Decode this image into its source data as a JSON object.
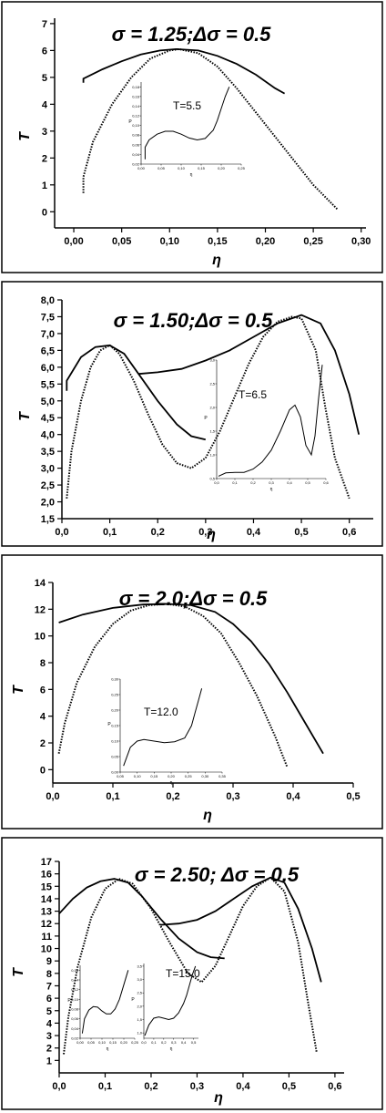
{
  "chart_data": [
    {
      "type": "line",
      "title": "σ = 1.25;Δσ = 0.5",
      "xlabel": "η",
      "ylabel": "T",
      "xlim": [
        -0.02,
        0.305
      ],
      "ylim": [
        -0.6,
        7.2
      ],
      "x_ticks": [
        "0,00",
        "0,05",
        "0,10",
        "0,15",
        "0,20",
        "0,25",
        "0,30"
      ],
      "x_tick_values": [
        0,
        0.05,
        0.1,
        0.15,
        0.2,
        0.25,
        0.3
      ],
      "y_ticks": [
        "0",
        "1",
        "2",
        "3",
        "4",
        "5",
        "6",
        "7"
      ],
      "y_tick_values": [
        0,
        1,
        2,
        3,
        4,
        5,
        6,
        7
      ],
      "series": [
        {
          "style": "solid",
          "x": [
            0.01,
            0.01,
            0.03,
            0.05,
            0.07,
            0.09,
            0.107,
            0.13,
            0.15,
            0.17,
            0.19,
            0.21,
            0.22
          ],
          "y": [
            4.8,
            4.95,
            5.3,
            5.6,
            5.85,
            6.0,
            6.05,
            6.0,
            5.8,
            5.5,
            5.1,
            4.6,
            4.4
          ]
        },
        {
          "style": "dotted",
          "x": [
            0.01,
            0.01,
            0.02,
            0.04,
            0.06,
            0.08,
            0.1,
            0.11,
            0.13,
            0.15,
            0.17,
            0.19,
            0.21,
            0.23,
            0.25,
            0.275
          ],
          "y": [
            0.7,
            1.3,
            2.6,
            4.0,
            5.0,
            5.7,
            6.0,
            6.05,
            5.9,
            5.4,
            4.6,
            3.7,
            2.8,
            1.9,
            1.0,
            0.1
          ]
        }
      ],
      "inset": {
        "label": "T=5.5",
        "xlabel": "η",
        "ylabel": "P",
        "x_ticks": [
          "0,00",
          "0,05",
          "0,10",
          "0,15",
          "0,20",
          "0,25"
        ],
        "x_tick_values": [
          0,
          0.05,
          0.1,
          0.15,
          0.2,
          0.25
        ],
        "y_ticks": [
          "0,02",
          "0,04",
          "0,06",
          "0,08",
          "0,10",
          "0,12",
          "0,14",
          "0,16",
          "0,18"
        ],
        "y_tick_values": [
          0.02,
          0.04,
          0.06,
          0.08,
          0.1,
          0.12,
          0.14,
          0.16,
          0.18
        ],
        "xlim": [
          0,
          0.25
        ],
        "ylim": [
          0.02,
          0.19
        ],
        "x": [
          0.01,
          0.01,
          0.02,
          0.04,
          0.06,
          0.08,
          0.1,
          0.12,
          0.14,
          0.16,
          0.18,
          0.19,
          0.2,
          0.21,
          0.22
        ],
        "y": [
          0.03,
          0.055,
          0.07,
          0.082,
          0.088,
          0.088,
          0.082,
          0.074,
          0.07,
          0.073,
          0.09,
          0.11,
          0.135,
          0.16,
          0.18
        ]
      }
    },
    {
      "type": "line",
      "title": "σ = 1.50;Δσ = 0.5",
      "xlabel": "η",
      "ylabel": "T",
      "xlim": [
        0,
        0.65
      ],
      "ylim": [
        1.5,
        8.0
      ],
      "x_ticks": [
        "0,0",
        "0,1",
        "0,2",
        "0,3",
        "0,4",
        "0,5",
        "0,6"
      ],
      "x_tick_values": [
        0,
        0.1,
        0.2,
        0.3,
        0.4,
        0.5,
        0.6
      ],
      "y_ticks": [
        "1,5",
        "2,0",
        "2,5",
        "3,0",
        "3,5",
        "4,0",
        "4,5",
        "5,0",
        "5,5",
        "6,0",
        "6,5",
        "7,0",
        "7,5",
        "8,0"
      ],
      "y_tick_values": [
        1.5,
        2.0,
        2.5,
        3.0,
        3.5,
        4.0,
        4.5,
        5.0,
        5.5,
        6.0,
        6.5,
        7.0,
        7.5,
        8.0
      ],
      "series": [
        {
          "style": "solid",
          "x": [
            0.01,
            0.01,
            0.04,
            0.07,
            0.1,
            0.13,
            0.16,
            0.2,
            0.24,
            0.27,
            0.3
          ],
          "y": [
            5.3,
            5.6,
            6.3,
            6.6,
            6.65,
            6.4,
            5.8,
            5.0,
            4.3,
            3.95,
            3.85
          ]
        },
        {
          "style": "solid",
          "x": [
            0.16,
            0.2,
            0.25,
            0.3,
            0.35,
            0.4,
            0.45,
            0.5,
            0.54,
            0.57,
            0.6,
            0.62
          ],
          "y": [
            5.8,
            5.85,
            5.95,
            6.2,
            6.5,
            6.9,
            7.3,
            7.55,
            7.3,
            6.5,
            5.2,
            4.0
          ]
        },
        {
          "style": "dotted",
          "x": [
            0.01,
            0.02,
            0.04,
            0.06,
            0.08,
            0.1,
            0.12,
            0.15,
            0.18,
            0.21,
            0.24,
            0.27,
            0.3,
            0.33,
            0.36,
            0.39,
            0.42,
            0.45,
            0.48,
            0.5,
            0.53,
            0.55,
            0.57,
            0.6
          ],
          "y": [
            2.1,
            3.5,
            5.0,
            6.0,
            6.5,
            6.65,
            6.4,
            5.6,
            4.6,
            3.7,
            3.15,
            3.0,
            3.3,
            4.1,
            5.1,
            6.1,
            6.9,
            7.35,
            7.5,
            7.45,
            6.5,
            4.8,
            3.3,
            2.1
          ]
        }
      ],
      "inset": {
        "label": "T=6.5",
        "xlabel": "η",
        "ylabel": "P",
        "x_ticks": [
          "0,0",
          "0,1",
          "0,2",
          "0,3",
          "0,4",
          "0,5",
          "0,6"
        ],
        "x_tick_values": [
          0,
          0.1,
          0.2,
          0.3,
          0.4,
          0.5,
          0.6
        ],
        "y_ticks": [
          "0,5",
          "1,0",
          "1,5",
          "2,0",
          "2,5",
          "3,0"
        ],
        "y_tick_values": [
          0.5,
          1.0,
          1.5,
          2.0,
          2.5,
          3.0
        ],
        "xlim": [
          0,
          0.6
        ],
        "ylim": [
          0.5,
          3.0
        ],
        "x": [
          0.01,
          0.05,
          0.1,
          0.15,
          0.2,
          0.25,
          0.3,
          0.35,
          0.4,
          0.43,
          0.46,
          0.49,
          0.52,
          0.54,
          0.56,
          0.58
        ],
        "y": [
          0.55,
          0.62,
          0.63,
          0.63,
          0.7,
          0.85,
          1.1,
          1.5,
          1.95,
          2.05,
          1.8,
          1.2,
          1.0,
          1.4,
          2.2,
          2.9
        ]
      }
    },
    {
      "type": "line",
      "title": "σ = 2.0;Δσ = 0.5",
      "xlabel": "η",
      "ylabel": "T",
      "xlim": [
        0,
        0.5
      ],
      "ylim": [
        -1.0,
        14.0
      ],
      "x_ticks": [
        "0,0",
        "0,1",
        "0,2",
        "0,3",
        "0,4",
        "0,5"
      ],
      "x_tick_values": [
        0,
        0.1,
        0.2,
        0.3,
        0.4,
        0.5
      ],
      "y_ticks": [
        "0",
        "2",
        "4",
        "6",
        "8",
        "10",
        "12",
        "14"
      ],
      "y_tick_values": [
        0,
        2,
        4,
        6,
        8,
        10,
        12,
        14
      ],
      "series": [
        {
          "style": "solid",
          "x": [
            0.01,
            0.05,
            0.1,
            0.15,
            0.19,
            0.23,
            0.27,
            0.3,
            0.33,
            0.36,
            0.39,
            0.42,
            0.45
          ],
          "y": [
            11.0,
            11.6,
            12.1,
            12.35,
            12.4,
            12.3,
            11.8,
            10.9,
            9.6,
            7.9,
            5.8,
            3.5,
            1.2
          ]
        },
        {
          "style": "dotted",
          "x": [
            0.01,
            0.02,
            0.04,
            0.07,
            0.1,
            0.13,
            0.16,
            0.19,
            0.22,
            0.25,
            0.28,
            0.31,
            0.34,
            0.37,
            0.39
          ],
          "y": [
            1.2,
            3.5,
            6.5,
            9.2,
            10.9,
            11.9,
            12.3,
            12.4,
            12.2,
            11.5,
            10.2,
            8.0,
            5.5,
            2.5,
            0.2
          ]
        }
      ],
      "inset": {
        "label": "T=12.0",
        "xlabel": "η",
        "ylabel": "P",
        "x_ticks": [
          "0,05",
          "0,10",
          "0,15",
          "0,20",
          "0,25",
          "0,30",
          "0,35"
        ],
        "x_tick_values": [
          0.05,
          0.1,
          0.15,
          0.2,
          0.25,
          0.3,
          0.35
        ],
        "y_ticks": [
          "0,00",
          "0,05",
          "0,10",
          "0,15",
          "0,20",
          "0,25",
          "0,30"
        ],
        "y_tick_values": [
          0,
          0.05,
          0.1,
          0.15,
          0.2,
          0.25,
          0.3
        ],
        "xlim": [
          0.05,
          0.35
        ],
        "ylim": [
          0,
          0.3
        ],
        "x": [
          0.06,
          0.08,
          0.1,
          0.12,
          0.15,
          0.18,
          0.21,
          0.24,
          0.26,
          0.27,
          0.28,
          0.29
        ],
        "y": [
          0.02,
          0.08,
          0.1,
          0.105,
          0.1,
          0.095,
          0.098,
          0.11,
          0.15,
          0.19,
          0.23,
          0.27
        ]
      }
    },
    {
      "type": "line",
      "title": "σ = 2.50; Δσ = 0.5",
      "xlabel": "η",
      "ylabel": "T",
      "xlim": [
        0,
        0.62
      ],
      "ylim": [
        0,
        17
      ],
      "x_ticks": [
        "0,0",
        "0,1",
        "0,2",
        "0,3",
        "0,4",
        "0,5",
        "0,6"
      ],
      "x_tick_values": [
        0,
        0.1,
        0.2,
        0.3,
        0.4,
        0.5,
        0.6
      ],
      "y_ticks": [
        "1",
        "2",
        "3",
        "4",
        "5",
        "6",
        "7",
        "8",
        "9",
        "10",
        "11",
        "12",
        "13",
        "14",
        "15",
        "16",
        "17"
      ],
      "y_tick_values": [
        1,
        2,
        3,
        4,
        5,
        6,
        7,
        8,
        9,
        10,
        11,
        12,
        13,
        14,
        15,
        16,
        17
      ],
      "series": [
        {
          "style": "solid",
          "x": [
            0.0,
            0.03,
            0.06,
            0.09,
            0.12,
            0.15,
            0.18,
            0.22,
            0.26,
            0.3,
            0.33,
            0.36
          ],
          "y": [
            12.8,
            14.0,
            14.9,
            15.4,
            15.6,
            15.3,
            14.2,
            12.4,
            10.8,
            9.7,
            9.3,
            9.2
          ]
        },
        {
          "style": "solid",
          "x": [
            0.22,
            0.26,
            0.3,
            0.34,
            0.38,
            0.42,
            0.46,
            0.49,
            0.52,
            0.55,
            0.57
          ],
          "y": [
            11.9,
            12.0,
            12.3,
            13.0,
            14.0,
            15.0,
            15.7,
            15.3,
            13.2,
            10.0,
            7.3
          ]
        },
        {
          "style": "dotted",
          "x": [
            0.01,
            0.02,
            0.04,
            0.07,
            0.1,
            0.13,
            0.16,
            0.2,
            0.24,
            0.28,
            0.31,
            0.34,
            0.37,
            0.4,
            0.43,
            0.46,
            0.49,
            0.52,
            0.54,
            0.56
          ],
          "y": [
            1.5,
            4.5,
            8.5,
            12.5,
            14.8,
            15.6,
            15.2,
            13.2,
            10.5,
            8.0,
            7.3,
            8.6,
            11.0,
            13.4,
            15.0,
            15.7,
            14.6,
            10.5,
            6.0,
            1.7
          ]
        }
      ],
      "insets": [
        {
          "label": "",
          "xlabel": "η",
          "ylabel": "P",
          "x_ticks": [
            "0,00",
            "0,05",
            "0,10",
            "0,15",
            "0,20",
            "0,25"
          ],
          "x_tick_values": [
            0,
            0.05,
            0.1,
            0.15,
            0.2,
            0.25
          ],
          "y_ticks": [
            "0,02",
            "0,04",
            "0,06",
            "0,08",
            "0,10",
            "0,12",
            "0,14",
            "0,16"
          ],
          "y_tick_values": [
            0.02,
            0.04,
            0.06,
            0.08,
            0.1,
            0.12,
            0.14,
            0.16
          ],
          "xlim": [
            0,
            0.25
          ],
          "ylim": [
            0.02,
            0.17
          ],
          "x": [
            0.01,
            0.02,
            0.04,
            0.06,
            0.08,
            0.1,
            0.12,
            0.14,
            0.16,
            0.18,
            0.2,
            0.22
          ],
          "y": [
            0.03,
            0.06,
            0.078,
            0.085,
            0.084,
            0.076,
            0.07,
            0.07,
            0.08,
            0.1,
            0.13,
            0.16
          ]
        },
        {
          "label": "T=15.0",
          "xlabel": "η",
          "ylabel": "P",
          "x_ticks": [
            "0,0",
            "0,1",
            "0,2",
            "0,3",
            "0,4",
            "0,5"
          ],
          "x_tick_values": [
            0,
            0.1,
            0.2,
            0.3,
            0.4,
            0.5
          ],
          "y_ticks": [
            "1,0",
            "1,5",
            "2,0",
            "2,5",
            "3,0",
            "3,5"
          ],
          "y_tick_values": [
            1.0,
            1.5,
            2.0,
            2.5,
            3.0,
            3.5
          ],
          "xlim": [
            0,
            0.55
          ],
          "ylim": [
            0.8,
            3.6
          ],
          "x": [
            0.01,
            0.05,
            0.1,
            0.15,
            0.2,
            0.25,
            0.3,
            0.35,
            0.4,
            0.43,
            0.46,
            0.49,
            0.52
          ],
          "y": [
            0.9,
            1.3,
            1.55,
            1.6,
            1.55,
            1.5,
            1.55,
            1.75,
            2.1,
            2.4,
            2.8,
            3.2,
            3.5
          ]
        }
      ]
    }
  ]
}
